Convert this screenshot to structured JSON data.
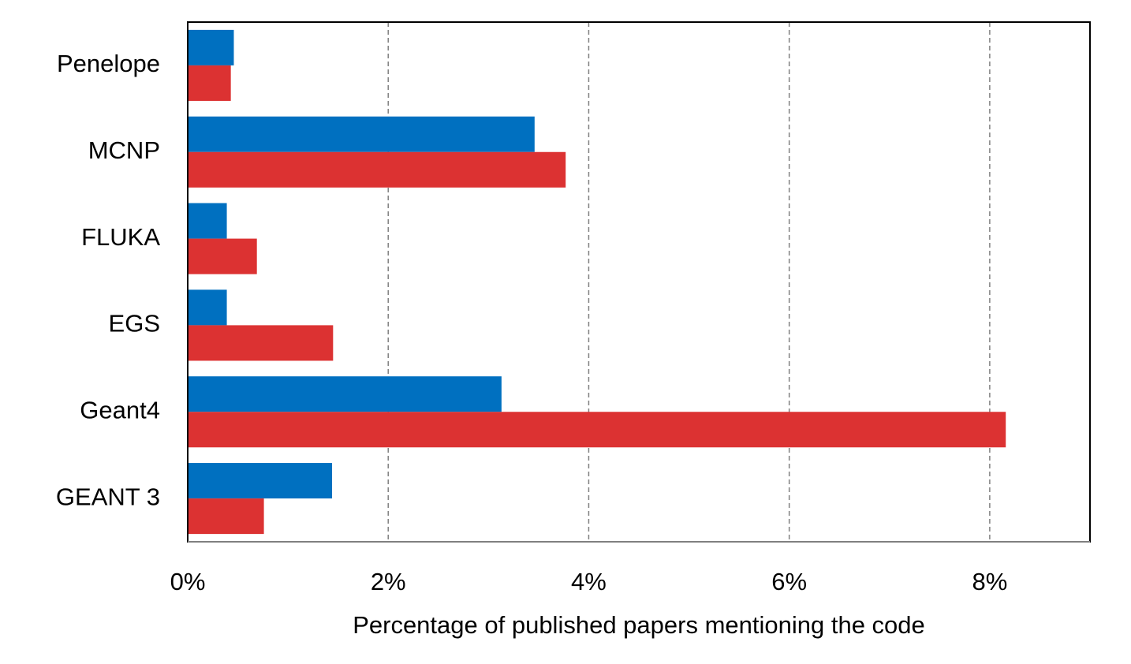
{
  "chart_data": {
    "type": "hbar",
    "x_label": "Percentage of published papers mentioning the code",
    "categories": [
      "Penelope",
      "MCNP",
      "FLUKA",
      "EGS",
      "Geant4",
      "GEANT 3"
    ],
    "series": [
      {
        "color": "#0070c0",
        "values": [
          0.46,
          3.46,
          0.39,
          0.39,
          3.13,
          1.44
        ]
      },
      {
        "color": "#dc3232",
        "values": [
          0.43,
          3.77,
          0.69,
          1.45,
          8.16,
          0.76
        ]
      }
    ],
    "xlim": [
      0,
      9
    ],
    "xticks": [
      {
        "value": 0,
        "label": "0%"
      },
      {
        "value": 2,
        "label": "2%"
      },
      {
        "value": 4,
        "label": "4%"
      },
      {
        "value": 6,
        "label": "6%"
      },
      {
        "value": 8,
        "label": "8%"
      }
    ],
    "grid": true
  }
}
